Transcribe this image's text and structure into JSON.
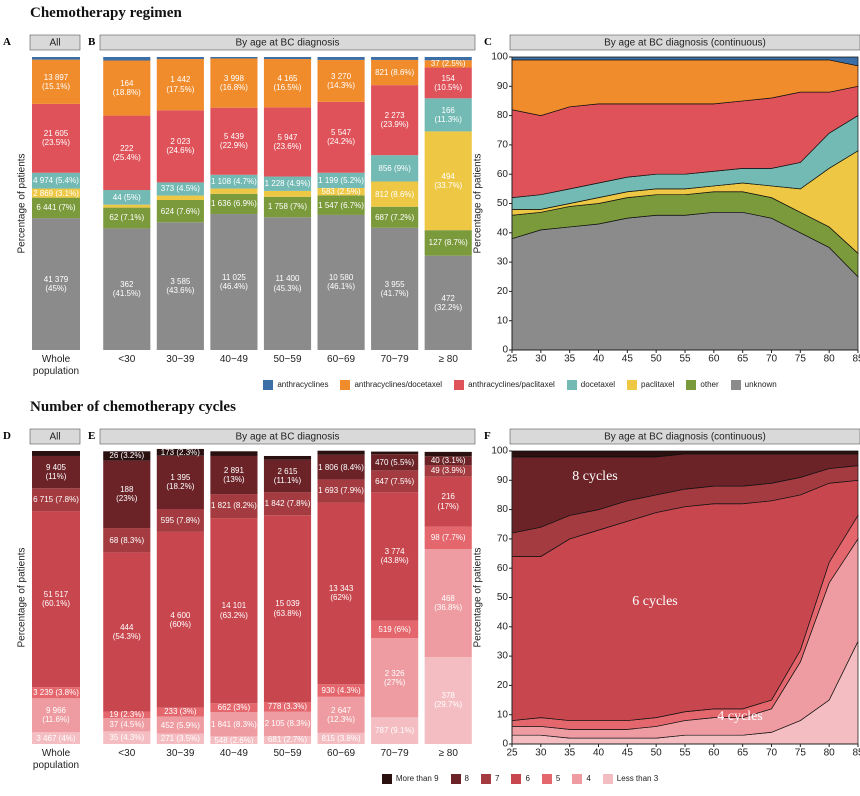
{
  "titles": [
    "Chemotherapy regimen",
    "Number of chemotherapy cycles"
  ],
  "chart_data": [
    {
      "type": "bar",
      "stacked": true,
      "panel_label": "A",
      "facet_label": "All",
      "ylabel": "Percentage of patients",
      "ylim": [
        0,
        100
      ],
      "categories": [
        "Whole population"
      ],
      "series": [
        {
          "name": "anthracyclines",
          "color": "#3b6fa6",
          "values": [
            0.9
          ],
          "value_labels": [
            null
          ]
        },
        {
          "name": "anthracyclines/docetaxel",
          "color": "#f08c2c",
          "values": [
            15.1
          ],
          "value_labels": [
            "13 897\n(15.1%)"
          ]
        },
        {
          "name": "anthracyclines/paclitaxel",
          "color": "#e0525a",
          "values": [
            23.5
          ],
          "value_labels": [
            "21 605\n(23.5%)"
          ]
        },
        {
          "name": "docetaxel",
          "color": "#73bab4",
          "values": [
            5.4
          ],
          "value_labels": [
            "4 974 (5.4%)"
          ]
        },
        {
          "name": "paclitaxel",
          "color": "#eec844",
          "values": [
            3.1
          ],
          "value_labels": [
            "2 869 (3.1%)"
          ]
        },
        {
          "name": "other",
          "color": "#7b9a3b",
          "values": [
            7
          ],
          "value_labels": [
            "6 441 (7%)"
          ]
        },
        {
          "name": "unknown",
          "color": "#8b8b8b",
          "values": [
            45
          ],
          "value_labels": [
            "41 379\n(45%)"
          ]
        }
      ]
    },
    {
      "type": "bar",
      "stacked": true,
      "panel_label": "B",
      "facet_label": "By age at BC diagnosis",
      "ylim": [
        0,
        100
      ],
      "categories": [
        "<30",
        "30−39",
        "40−49",
        "50−59",
        "60−69",
        "70−79",
        "≥ 80"
      ],
      "series": [
        {
          "name": "anthracyclines",
          "color": "#3b6fa6",
          "values": [
            1.2,
            0.7,
            0.5,
            0.7,
            1,
            1,
            1.1
          ],
          "value_labels": [
            null,
            null,
            null,
            null,
            null,
            null,
            null
          ]
        },
        {
          "name": "anthracyclines/docetaxel",
          "color": "#f08c2c",
          "values": [
            18.8,
            17.5,
            16.8,
            16.5,
            14.3,
            8.6,
            2.5
          ],
          "value_labels": [
            "164\n(18.8%)",
            "1 442\n(17.5%)",
            "3 998\n(16.8%)",
            "4 165\n(16.5%)",
            "3 270\n(14.3%)",
            "821 (8.6%)",
            "37 (2.5%)"
          ]
        },
        {
          "name": "anthracyclines/paclitaxel",
          "color": "#e0525a",
          "values": [
            25.4,
            24.6,
            22.9,
            23.6,
            24.2,
            23.9,
            10.5
          ],
          "value_labels": [
            "222\n(25.4%)",
            "2 023\n(24.6%)",
            "5 439\n(22.9%)",
            "5 947\n(23.6%)",
            "5 547\n(24.2%)",
            "2 273\n(23.9%)",
            "154\n(10.5%)"
          ]
        },
        {
          "name": "docetaxel",
          "color": "#73bab4",
          "values": [
            5,
            4.5,
            4.7,
            4.9,
            5.2,
            9,
            11.3
          ],
          "value_labels": [
            "44 (5%)",
            "373 (4.5%)",
            "1 108 (4.7%)",
            "1 228 (4.9%)",
            "1 199 (5.2%)",
            "856 (9%)",
            "166\n(11.3%)"
          ]
        },
        {
          "name": "paclitaxel",
          "color": "#eec844",
          "values": [
            1,
            1.5,
            1.8,
            2,
            2.5,
            8.6,
            33.7
          ],
          "value_labels": [
            null,
            null,
            null,
            null,
            "583 (2.5%)",
            "812 (8.6%)",
            "494\n(33.7%)"
          ]
        },
        {
          "name": "other",
          "color": "#7b9a3b",
          "values": [
            7.1,
            7.6,
            6.9,
            7,
            6.7,
            7.2,
            8.7
          ],
          "value_labels": [
            "62 (7.1%)",
            "624 (7.6%)",
            "1 636 (6.9%)",
            "1 758 (7%)",
            "1 547 (6.7%)",
            "687 (7.2%)",
            "127 (8.7%)"
          ]
        },
        {
          "name": "unknown",
          "color": "#8b8b8b",
          "values": [
            41.5,
            43.6,
            46.4,
            45.3,
            46.1,
            41.7,
            32.2
          ],
          "value_labels": [
            "362\n(41.5%)",
            "3 585\n(43.6%)",
            "11 025\n(46.4%)",
            "11 400\n(45.3%)",
            "10 580\n(46.1%)",
            "3 955\n(41.7%)",
            "472\n(32.2%)"
          ]
        }
      ]
    },
    {
      "type": "area",
      "stacked": true,
      "panel_label": "C",
      "facet_label": "By age at BC diagnosis (continuous)",
      "ylabel": "Percentage of patients",
      "x": [
        25,
        30,
        35,
        40,
        45,
        50,
        55,
        60,
        65,
        70,
        75,
        80,
        85
      ],
      "xlim": [
        25,
        85
      ],
      "xticks": [
        25,
        30,
        35,
        40,
        45,
        50,
        55,
        60,
        65,
        70,
        75,
        80,
        85
      ],
      "ylim": [
        0,
        100
      ],
      "yticks": [
        0,
        10,
        20,
        30,
        40,
        50,
        60,
        70,
        80,
        90,
        100
      ],
      "series": [
        {
          "name": "anthracyclines",
          "color": "#3b6fa6",
          "values": [
            1,
            1,
            1,
            1,
            1,
            1,
            1,
            1,
            1,
            1,
            1,
            1,
            3
          ]
        },
        {
          "name": "anthracyclines/docetaxel",
          "color": "#f08c2c",
          "values": [
            17,
            19,
            16,
            15,
            15,
            15,
            15,
            15,
            14,
            13,
            11,
            11,
            7
          ]
        },
        {
          "name": "anthracyclines/paclitaxel",
          "color": "#e0525a",
          "values": [
            30,
            27,
            28,
            27,
            25,
            24,
            24,
            23,
            23,
            24,
            24,
            14,
            10
          ]
        },
        {
          "name": "docetaxel",
          "color": "#73bab4",
          "values": [
            4,
            5,
            5,
            5,
            5,
            5,
            5,
            5,
            5,
            6,
            9,
            12,
            12
          ]
        },
        {
          "name": "paclitaxel",
          "color": "#eec844",
          "values": [
            2,
            1,
            1,
            2,
            2,
            2,
            2,
            2,
            3,
            4,
            8,
            20,
            35
          ]
        },
        {
          "name": "other",
          "color": "#7b9a3b",
          "values": [
            8,
            6,
            7,
            7,
            7,
            7,
            7,
            7,
            7,
            7,
            7,
            7,
            8
          ]
        },
        {
          "name": "unknown",
          "color": "#8b8b8b",
          "values": [
            38,
            41,
            42,
            43,
            45,
            46,
            46,
            47,
            47,
            45,
            40,
            35,
            25
          ]
        }
      ]
    },
    {
      "type": "bar",
      "stacked": true,
      "panel_label": "D",
      "facet_label": "All",
      "ylabel": "Percentage of patients",
      "ylim": [
        0,
        100
      ],
      "categories": [
        "Whole population"
      ],
      "series": [
        {
          "name": "More than 9",
          "color": "#2b1010",
          "values": [
            1.7
          ],
          "value_labels": [
            null
          ]
        },
        {
          "name": "8",
          "color": "#6b2328",
          "values": [
            11
          ],
          "value_labels": [
            "9 405\n(11%)"
          ]
        },
        {
          "name": "7",
          "color": "#a33b40",
          "values": [
            7.8
          ],
          "value_labels": [
            "6 715 (7.8%)"
          ]
        },
        {
          "name": "6",
          "color": "#c8474f",
          "values": [
            60.1
          ],
          "value_labels": [
            "51 517\n(60.1%)"
          ]
        },
        {
          "name": "5",
          "color": "#e4676d",
          "values": [
            3.8
          ],
          "value_labels": [
            "3 239 (3.8%)"
          ]
        },
        {
          "name": "4",
          "color": "#ee9ca1",
          "values": [
            11.6
          ],
          "value_labels": [
            "9 966\n(11.6%)"
          ]
        },
        {
          "name": "Less than 3",
          "color": "#f4bdc2",
          "values": [
            4
          ],
          "value_labels": [
            "3 467 (4%)"
          ]
        }
      ]
    },
    {
      "type": "bar",
      "stacked": true,
      "panel_label": "E",
      "facet_label": "By age at BC diagnosis",
      "ylim": [
        0,
        100
      ],
      "categories": [
        "<30",
        "30−39",
        "40−49",
        "50−59",
        "60−69",
        "70−79",
        "≥ 80"
      ],
      "series": [
        {
          "name": "More than 9",
          "color": "#2b1010",
          "values": [
            3.2,
            2.3,
            1.6,
            1.3,
            1.4,
            0.9,
            1.5
          ],
          "value_labels": [
            "26 (3.2%)",
            "173 (2.3%)",
            null,
            null,
            null,
            null,
            null
          ]
        },
        {
          "name": "8",
          "color": "#6b2328",
          "values": [
            23,
            18.2,
            13,
            11.1,
            8.4,
            5.5,
            3.1
          ],
          "value_labels": [
            "188\n(23%)",
            "1 395\n(18.2%)",
            "2 891\n(13%)",
            "2 615\n(11.1%)",
            "1 806 (8.4%)",
            "470 (5.5%)",
            "40 (3.1%)"
          ]
        },
        {
          "name": "7",
          "color": "#a33b40",
          "values": [
            8.3,
            7.8,
            8.2,
            7.8,
            7.9,
            7.5,
            3.9
          ],
          "value_labels": [
            "68 (8.3%)",
            "595 (7.8%)",
            "1 821 (8.2%)",
            "1 842 (7.8%)",
            "1 693 (7.9%)",
            "647 (7.5%)",
            "49 (3.9%)"
          ]
        },
        {
          "name": "6",
          "color": "#c8474f",
          "values": [
            54.3,
            60,
            63.2,
            63.8,
            62,
            43.8,
            17
          ],
          "value_labels": [
            "444\n(54.3%)",
            "4 600\n(60%)",
            "14 101\n(63.2%)",
            "15 039\n(63.8%)",
            "13 343\n(62%)",
            "3 774\n(43.8%)",
            "216\n(17%)"
          ]
        },
        {
          "name": "5",
          "color": "#e4676d",
          "values": [
            2.3,
            3,
            3,
            3.3,
            4.3,
            6,
            7.7
          ],
          "value_labels": [
            "19 (2.3%)",
            "233 (3%)",
            "662 (3%)",
            "778 (3.3%)",
            "930 (4.3%)",
            "519 (6%)",
            "98 (7.7%)"
          ]
        },
        {
          "name": "4",
          "color": "#ee9ca1",
          "values": [
            4.5,
            5.9,
            8.3,
            8.3,
            12.3,
            27,
            36.8
          ],
          "value_labels": [
            "37 (4.5%)",
            "452 (5.9%)",
            "1 841 (8.3%)",
            "2 105 (8.3%)",
            "2 647\n(12.3%)",
            "2 326\n(27%)",
            "468\n(36.8%)"
          ]
        },
        {
          "name": "Less than 3",
          "color": "#f4bdc2",
          "values": [
            4.3,
            3.5,
            2.6,
            2.7,
            3.8,
            9.1,
            29.7
          ],
          "value_labels": [
            "35 (4.3%)",
            "271 (3.5%)",
            "548 (2.6%)",
            "681 (2.7%)",
            "815 (3.8%)",
            "787 (9.1%)",
            "378\n(29.7%)"
          ]
        }
      ]
    },
    {
      "type": "area",
      "stacked": true,
      "panel_label": "F",
      "facet_label": "By age at BC diagnosis (continuous)",
      "ylabel": "Percentage of patients",
      "annotations": [
        "8 cycles",
        "6 cycles",
        "4 cycles"
      ],
      "x": [
        25,
        30,
        35,
        40,
        45,
        50,
        55,
        60,
        65,
        70,
        75,
        80,
        85
      ],
      "xlim": [
        25,
        85
      ],
      "xticks": [
        25,
        30,
        35,
        40,
        45,
        50,
        55,
        60,
        65,
        70,
        75,
        80,
        85
      ],
      "ylim": [
        0,
        100
      ],
      "yticks": [
        0,
        10,
        20,
        30,
        40,
        50,
        60,
        70,
        80,
        90,
        100
      ],
      "series": [
        {
          "name": "More than 9",
          "color": "#2b1010",
          "values": [
            2,
            2,
            2,
            2,
            2,
            2,
            1,
            1,
            1,
            1,
            1,
            1,
            1
          ]
        },
        {
          "name": "8",
          "color": "#6b2328",
          "values": [
            26,
            24,
            20,
            18,
            15,
            13,
            12,
            11,
            11,
            10,
            8,
            5,
            4
          ]
        },
        {
          "name": "7",
          "color": "#a33b40",
          "values": [
            8,
            10,
            8,
            7,
            7,
            6,
            6,
            6,
            6,
            6,
            6,
            5,
            5
          ]
        },
        {
          "name": "6",
          "color": "#c8474f",
          "values": [
            56,
            55,
            62,
            65,
            68,
            70,
            70,
            70,
            70,
            68,
            53,
            27,
            12
          ]
        },
        {
          "name": "5",
          "color": "#e4676d",
          "values": [
            2,
            3,
            3,
            3,
            3,
            3,
            3,
            3,
            3,
            3,
            4,
            7,
            8
          ]
        },
        {
          "name": "4",
          "color": "#ee9ca1",
          "values": [
            3,
            3,
            3,
            3,
            3,
            4,
            5,
            6,
            6,
            8,
            20,
            40,
            35
          ]
        },
        {
          "name": "Less than 3",
          "color": "#f4bdc2",
          "values": [
            3,
            3,
            2,
            2,
            2,
            2,
            3,
            3,
            3,
            4,
            8,
            15,
            35
          ]
        }
      ]
    }
  ]
}
